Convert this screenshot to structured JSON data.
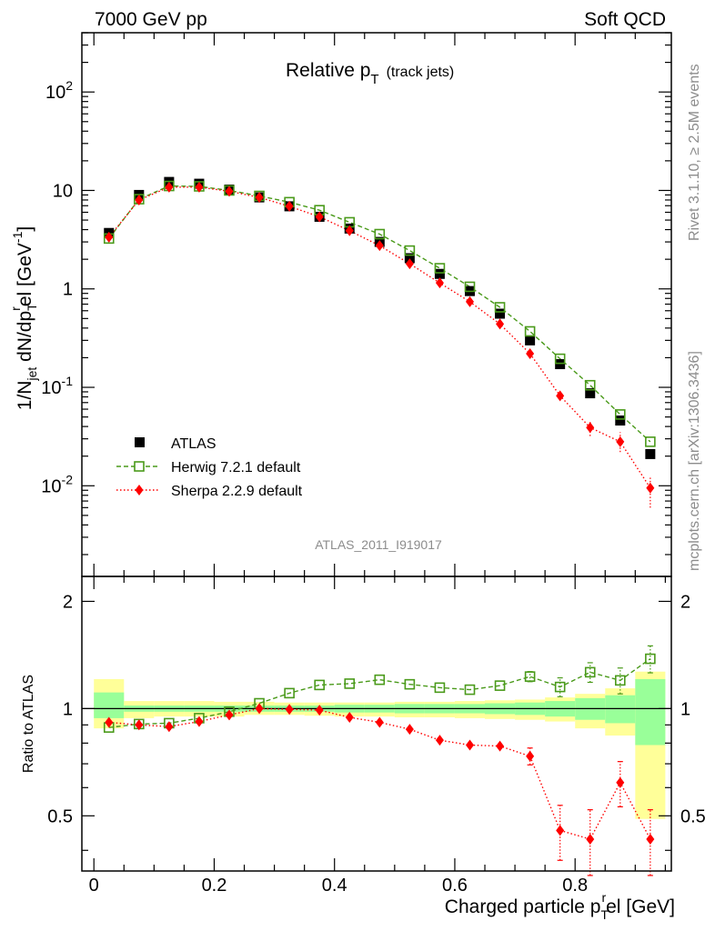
{
  "header": {
    "left": "7000 GeV pp",
    "right": "Soft QCD"
  },
  "side": {
    "rivet": "Rivet 3.1.10, ≥ 2.5M events",
    "mcplots": "mcplots.cern.ch [arXiv:1306.3436]"
  },
  "chart_data": [
    {
      "type": "scatter",
      "panel": "main",
      "title": "Relative p",
      "title_sub": "T",
      "title_note": "(track jets)",
      "watermark": "ATLAS_2011_I919017",
      "ylabel": "1/N",
      "ylabel_sub1": "jet",
      "ylabel_mid": " dN/dp",
      "ylabel_sub2": "T",
      "ylabel_sup": "r",
      "ylabel_tail": "el [GeV",
      "ylabel_sup2": "-1",
      "ylabel_end": "]",
      "yscale": "log",
      "ylim": [
        0.0012,
        400
      ],
      "xlim": [
        -0.02,
        0.96
      ],
      "grid": false,
      "legend_position": "lower-left",
      "y_ticks": [
        {
          "base": "10",
          "exp": "-2"
        },
        {
          "base": "10",
          "exp": "-1"
        },
        {
          "base": "1",
          "exp": ""
        },
        {
          "base": "10",
          "exp": ""
        },
        {
          "base": "10",
          "exp": "2"
        }
      ],
      "x": [
        0.025,
        0.075,
        0.125,
        0.175,
        0.225,
        0.275,
        0.325,
        0.375,
        0.425,
        0.475,
        0.525,
        0.575,
        0.625,
        0.675,
        0.725,
        0.775,
        0.825,
        0.875,
        0.925
      ],
      "series": [
        {
          "name": "ATLAS",
          "style": "black-square",
          "color": "#000000",
          "values": [
            3.7,
            9.0,
            12.2,
            11.7,
            10.2,
            8.5,
            6.9,
            5.4,
            4.1,
            3.0,
            2.05,
            1.42,
            0.95,
            0.56,
            0.3,
            0.172,
            0.087,
            0.046,
            0.021
          ]
        },
        {
          "name": "Herwig 7.2.1 default",
          "style": "open-square-dashed",
          "color": "#4a9a1a",
          "values": [
            3.25,
            8.15,
            11.1,
            11.0,
            10.0,
            8.8,
            7.6,
            6.3,
            4.75,
            3.6,
            2.45,
            1.62,
            1.05,
            0.65,
            0.37,
            0.195,
            0.105,
            0.053,
            0.028
          ]
        },
        {
          "name": "Sherpa 2.2.9 default",
          "style": "red-diamond-dotted",
          "color": "#ff0000",
          "values": [
            3.35,
            8.0,
            10.8,
            10.8,
            9.8,
            8.5,
            6.9,
            5.4,
            3.9,
            2.75,
            1.8,
            1.15,
            0.74,
            0.44,
            0.22,
            0.082,
            0.039,
            0.028,
            0.0095
          ],
          "errors_low": [
            0,
            0,
            0,
            0,
            0,
            0,
            0,
            0,
            0,
            0,
            0,
            0,
            0,
            0,
            0,
            0.007,
            0.007,
            0.006,
            0.0035
          ],
          "errors_high": [
            0,
            0,
            0,
            0,
            0,
            0,
            0,
            0,
            0,
            0,
            0,
            0,
            0,
            0,
            0,
            0.007,
            0.007,
            0.007,
            0.003
          ]
        }
      ]
    },
    {
      "type": "scatter",
      "panel": "ratio",
      "ylabel": "Ratio to ATLAS",
      "xlabel": "Charged particle p",
      "xlabel_sub": "T",
      "xlabel_sup": "r",
      "xlabel_tail": "el [GeV]",
      "ylim": [
        0.35,
        2.35
      ],
      "xlim": [
        -0.02,
        0.96
      ],
      "y_ticks": [
        "0.5",
        "1",
        "2"
      ],
      "x_ticks": [
        "0",
        "0.2",
        "0.4",
        "0.6",
        "0.8"
      ],
      "x_tick_values": [
        0,
        0.2,
        0.4,
        0.6,
        0.8
      ],
      "bins": [
        [
          0,
          0.05
        ],
        [
          0.05,
          0.1
        ],
        [
          0.1,
          0.15
        ],
        [
          0.15,
          0.2
        ],
        [
          0.2,
          0.25
        ],
        [
          0.25,
          0.3
        ],
        [
          0.3,
          0.35
        ],
        [
          0.35,
          0.4
        ],
        [
          0.4,
          0.45
        ],
        [
          0.45,
          0.5
        ],
        [
          0.5,
          0.55
        ],
        [
          0.55,
          0.6
        ],
        [
          0.6,
          0.65
        ],
        [
          0.65,
          0.7
        ],
        [
          0.7,
          0.75
        ],
        [
          0.75,
          0.8
        ],
        [
          0.8,
          0.85
        ],
        [
          0.85,
          0.9
        ],
        [
          0.9,
          0.95
        ]
      ],
      "band_stat": [
        [
          0.94,
          1.11
        ],
        [
          0.98,
          1.02
        ],
        [
          0.98,
          1.02
        ],
        [
          0.98,
          1.02
        ],
        [
          0.98,
          1.02
        ],
        [
          0.98,
          1.02
        ],
        [
          0.98,
          1.02
        ],
        [
          0.98,
          1.02
        ],
        [
          0.975,
          1.025
        ],
        [
          0.975,
          1.025
        ],
        [
          0.97,
          1.03
        ],
        [
          0.97,
          1.03
        ],
        [
          0.97,
          1.03
        ],
        [
          0.965,
          1.035
        ],
        [
          0.96,
          1.04
        ],
        [
          0.95,
          1.05
        ],
        [
          0.93,
          1.07
        ],
        [
          0.91,
          1.09
        ],
        [
          0.79,
          1.21
        ]
      ],
      "band_syst": [
        [
          0.88,
          1.21
        ],
        [
          0.94,
          1.05
        ],
        [
          0.95,
          1.05
        ],
        [
          0.95,
          1.05
        ],
        [
          0.95,
          1.045
        ],
        [
          0.96,
          1.045
        ],
        [
          0.96,
          1.04
        ],
        [
          0.955,
          1.04
        ],
        [
          0.95,
          1.04
        ],
        [
          0.95,
          1.04
        ],
        [
          0.945,
          1.045
        ],
        [
          0.945,
          1.045
        ],
        [
          0.94,
          1.05
        ],
        [
          0.935,
          1.055
        ],
        [
          0.93,
          1.06
        ],
        [
          0.92,
          1.075
        ],
        [
          0.88,
          1.1
        ],
        [
          0.84,
          1.14
        ],
        [
          0.49,
          1.27
        ]
      ],
      "band_colors": {
        "stat": "#99ff99",
        "syst": "#ffff99"
      },
      "series": [
        {
          "name": "Herwig 7.2.1 default",
          "color": "#4a9a1a",
          "values": [
            0.885,
            0.905,
            0.91,
            0.94,
            0.98,
            1.035,
            1.105,
            1.165,
            1.175,
            1.205,
            1.17,
            1.145,
            1.13,
            1.16,
            1.23,
            1.15,
            1.265,
            1.2,
            1.38
          ],
          "errors": [
            0,
            0,
            0,
            0,
            0,
            0,
            0,
            0,
            0,
            0,
            0,
            0,
            0,
            0,
            0.04,
            0.07,
            0.08,
            0.1,
            0.12
          ]
        },
        {
          "name": "Sherpa 2.2.9 default",
          "color": "#ff0000",
          "values": [
            0.915,
            0.9,
            0.89,
            0.92,
            0.96,
            1.0,
            0.995,
            0.99,
            0.945,
            0.915,
            0.875,
            0.815,
            0.79,
            0.785,
            0.735,
            0.455,
            0.43,
            0.62,
            0.43
          ],
          "errors": [
            0,
            0,
            0,
            0,
            0,
            0,
            0,
            0,
            0,
            0,
            0,
            0,
            0,
            0,
            0.04,
            0.08,
            0.09,
            0.09,
            0.09
          ]
        }
      ]
    }
  ]
}
